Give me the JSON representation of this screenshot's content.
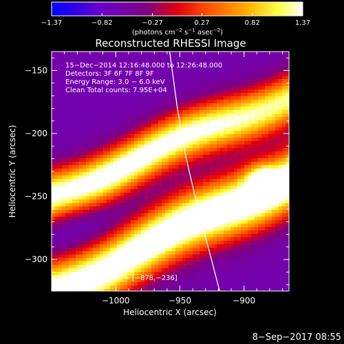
{
  "chart_data": {
    "type": "heatmap",
    "title": "Reconstructed RHESSI Image",
    "xlabel": "Heliocentric X (arcsec)",
    "ylabel": "Heliocentric Y (arcsec)",
    "xlim": [
      -1050,
      -865
    ],
    "ylim": [
      -325,
      -135
    ],
    "x_ticks": [
      -1000,
      -950,
      -900
    ],
    "x_tick_labels": [
      "−1000",
      "−950",
      "−900"
    ],
    "y_ticks": [
      -150,
      -200,
      -250,
      -300
    ],
    "y_tick_labels": [
      "−150",
      "−200",
      "−250",
      "−300"
    ],
    "colorbar": {
      "ticks": [
        -1.37,
        -0.82,
        -0.27,
        0.27,
        0.82,
        1.37
      ],
      "tick_labels": [
        "−1.37",
        "−0.82",
        "−0.27",
        "0.27",
        "0.82",
        "1.37"
      ],
      "range": [
        -1.37,
        1.37
      ],
      "colormap": "blue-purple-red-orange-yellow-white"
    },
    "units_label": {
      "prefix": "(photons cm",
      "sup1": "−2",
      "mid1": " s",
      "sup2": "−1",
      "mid2": " asec",
      "sup3": "−2",
      "suffix": ")"
    },
    "info_lines": [
      "15−Dec−2014 12:16:48.000 to 12:26:48.000",
      "Detectors: 3F 6F 7F 8F 9F",
      "Energy Range: 3.0 − 6.0 keV",
      "Clean     Total counts: 7.95E+04"
    ],
    "peak_text": "Position of Peak: = [−878,−236]",
    "peak": {
      "x": -878,
      "y": -236
    },
    "limb_curve": [
      [
        -958,
        -135
      ],
      [
        -952,
        -180
      ],
      [
        -945,
        -220
      ],
      [
        -937,
        -255
      ],
      [
        -928,
        -290
      ],
      [
        -919,
        -325
      ]
    ],
    "grid": false,
    "legend": "none"
  },
  "footer_date": "8−Sep−2017 08:55",
  "colors": {
    "background": "#000000",
    "foreground": "#ffffff",
    "limb": "#ffffff"
  }
}
